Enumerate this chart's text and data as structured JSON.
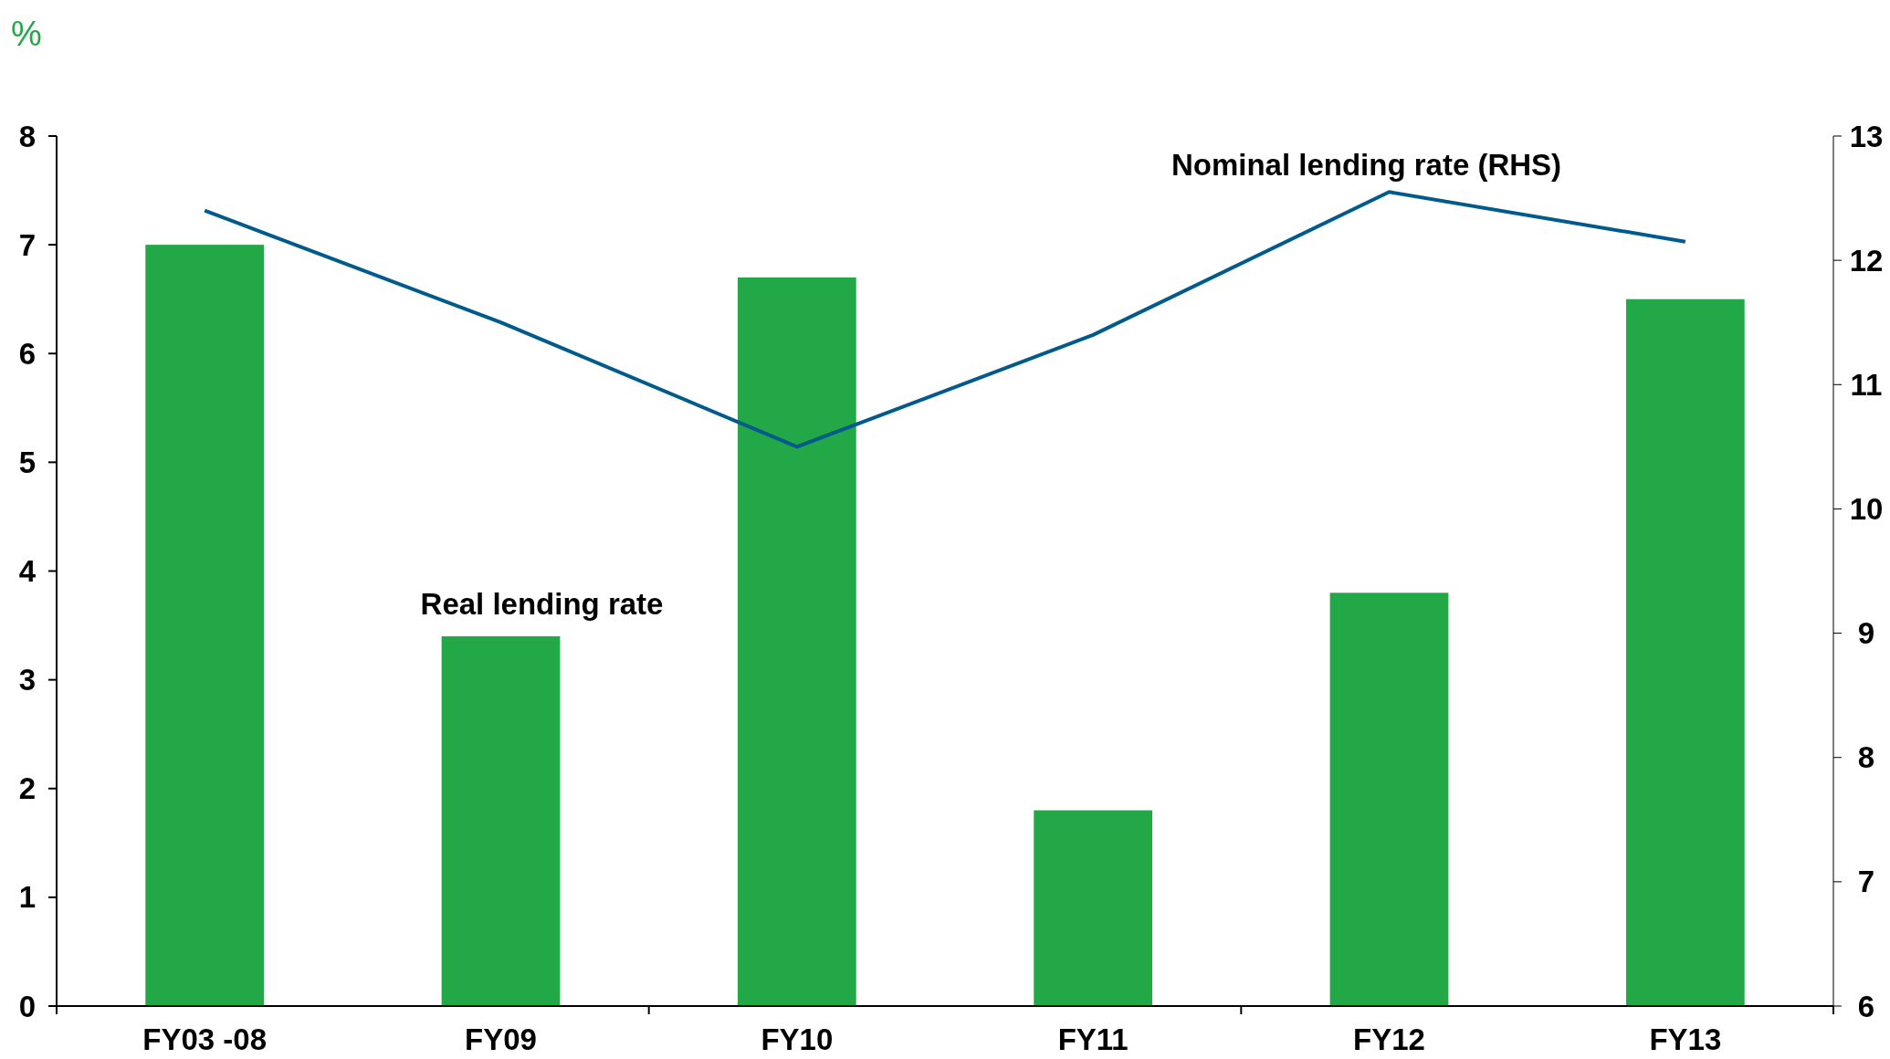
{
  "chart_data": {
    "type": "bar",
    "ylabel": "%",
    "categories": [
      "FY03 -08",
      "FY09",
      "FY10",
      "FY11",
      "FY12",
      "FY13"
    ],
    "series": [
      {
        "name": "Real lending rate",
        "color": "#22a846",
        "values": [
          7.0,
          3.4,
          6.7,
          1.8,
          3.8,
          6.5
        ]
      },
      {
        "name": "Nominal lending rate (RHS)",
        "type": "line",
        "axis": "y2",
        "color": "#005b8c",
        "values": [
          12.4,
          11.5,
          10.5,
          11.4,
          12.55,
          12.15
        ]
      }
    ],
    "ylim": [
      0,
      8
    ],
    "yticks": [
      0,
      1,
      2,
      3,
      4,
      5,
      6,
      7,
      8
    ],
    "y2lim": [
      6,
      13
    ],
    "y2ticks": [
      6,
      7,
      8,
      9,
      10,
      11,
      12,
      13
    ],
    "grid": false
  }
}
